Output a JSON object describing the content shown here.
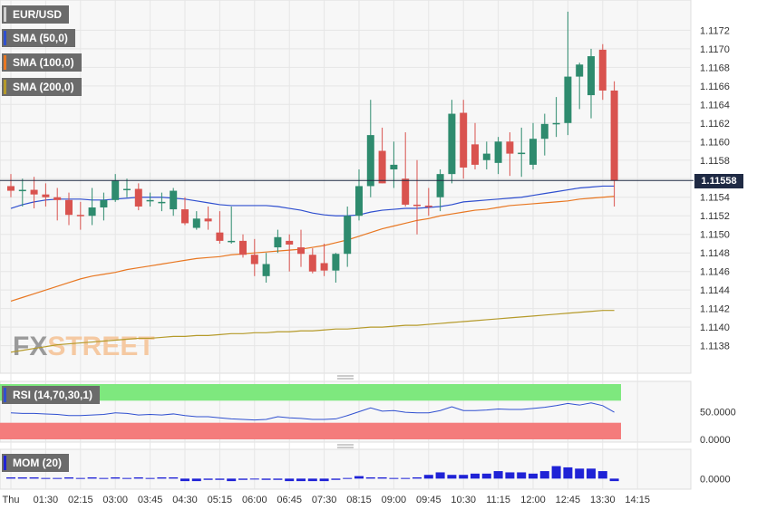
{
  "legend": {
    "pair": "EUR/USD",
    "sma50": "SMA (50,0)",
    "sma100": "SMA (100,0)",
    "sma200": "SMA (200,0)",
    "rsi": "RSI (14,70,30,1)",
    "mom": "MOM (20)"
  },
  "watermark": "FXSTREET",
  "current_price_label": "1.11558",
  "colors": {
    "up": "#2e8b6e",
    "down": "#d9534f",
    "sma50": "#2f4fcf",
    "sma100": "#e87722",
    "sma200": "#b59a2a",
    "rsi_line": "#3050d0",
    "rsi_overbought": "#7ee87e",
    "rsi_oversold": "#f47c7c",
    "mom_bar": "#1f22d6",
    "price_line": "#1f2a44",
    "watermark_fx": "#9a9a9a",
    "watermark_street": "#f5c9a2"
  },
  "chart_data": {
    "type": "candlestick",
    "title": "EUR/USD",
    "y_ticks": [
      "1.1172",
      "1.1170",
      "1.1168",
      "1.1166",
      "1.1164",
      "1.1162",
      "1.1160",
      "1.1158",
      "1.1156",
      "1.1154",
      "1.1152",
      "1.1150",
      "1.1148",
      "1.1146",
      "1.1144",
      "1.1142",
      "1.1140",
      "1.1138"
    ],
    "ylim": [
      1.11365,
      1.11735
    ],
    "x_ticks": [
      "Thu",
      "01:30",
      "02:15",
      "03:00",
      "03:45",
      "04:30",
      "05:15",
      "06:00",
      "06:45",
      "07:30",
      "08:15",
      "09:00",
      "09:45",
      "10:30",
      "11:15",
      "12:00",
      "12:45",
      "13:30",
      "14:15"
    ],
    "interval_minutes": 15,
    "candles": [
      {
        "o": 1.11552,
        "h": 1.11565,
        "l": 1.1154,
        "c": 1.11547
      },
      {
        "o": 1.11547,
        "h": 1.1156,
        "l": 1.1153,
        "c": 1.11548
      },
      {
        "o": 1.11548,
        "h": 1.11562,
        "l": 1.11528,
        "c": 1.11543
      },
      {
        "o": 1.11543,
        "h": 1.11555,
        "l": 1.1153,
        "c": 1.1154
      },
      {
        "o": 1.1154,
        "h": 1.1155,
        "l": 1.11515,
        "c": 1.11537
      },
      {
        "o": 1.11537,
        "h": 1.11545,
        "l": 1.1151,
        "c": 1.11521
      },
      {
        "o": 1.11521,
        "h": 1.11535,
        "l": 1.11505,
        "c": 1.1152
      },
      {
        "o": 1.1152,
        "h": 1.1155,
        "l": 1.1151,
        "c": 1.11529
      },
      {
        "o": 1.11529,
        "h": 1.11545,
        "l": 1.11515,
        "c": 1.11537
      },
      {
        "o": 1.11537,
        "h": 1.11565,
        "l": 1.11535,
        "c": 1.11558
      },
      {
        "o": 1.11548,
        "h": 1.1156,
        "l": 1.1154,
        "c": 1.11549
      },
      {
        "o": 1.11549,
        "h": 1.11555,
        "l": 1.11526,
        "c": 1.1153
      },
      {
        "o": 1.11537,
        "h": 1.11545,
        "l": 1.1153,
        "c": 1.11537
      },
      {
        "o": 1.11535,
        "h": 1.11545,
        "l": 1.11525,
        "c": 1.11535
      },
      {
        "o": 1.11527,
        "h": 1.1155,
        "l": 1.1152,
        "c": 1.11547
      },
      {
        "o": 1.11527,
        "h": 1.1154,
        "l": 1.1151,
        "c": 1.11512
      },
      {
        "o": 1.11507,
        "h": 1.11525,
        "l": 1.11505,
        "c": 1.11517
      },
      {
        "o": 1.11517,
        "h": 1.1153,
        "l": 1.11505,
        "c": 1.11514
      },
      {
        "o": 1.11502,
        "h": 1.11525,
        "l": 1.1149,
        "c": 1.11493
      },
      {
        "o": 1.11493,
        "h": 1.1153,
        "l": 1.1149,
        "c": 1.11493
      },
      {
        "o": 1.11493,
        "h": 1.115,
        "l": 1.11475,
        "c": 1.11478
      },
      {
        "o": 1.11478,
        "h": 1.11495,
        "l": 1.11455,
        "c": 1.11468
      },
      {
        "o": 1.11455,
        "h": 1.1148,
        "l": 1.11448,
        "c": 1.11468
      },
      {
        "o": 1.11486,
        "h": 1.11505,
        "l": 1.1148,
        "c": 1.11497
      },
      {
        "o": 1.11493,
        "h": 1.115,
        "l": 1.1146,
        "c": 1.11489
      },
      {
        "o": 1.11486,
        "h": 1.11505,
        "l": 1.11465,
        "c": 1.11479
      },
      {
        "o": 1.11478,
        "h": 1.11485,
        "l": 1.11458,
        "c": 1.1146
      },
      {
        "o": 1.11469,
        "h": 1.1149,
        "l": 1.11455,
        "c": 1.11461
      },
      {
        "o": 1.11461,
        "h": 1.1148,
        "l": 1.11448,
        "c": 1.11479
      },
      {
        "o": 1.11479,
        "h": 1.1153,
        "l": 1.11465,
        "c": 1.1152
      },
      {
        "o": 1.1152,
        "h": 1.1157,
        "l": 1.11515,
        "c": 1.11552
      },
      {
        "o": 1.11552,
        "h": 1.11645,
        "l": 1.1154,
        "c": 1.11607
      },
      {
        "o": 1.1159,
        "h": 1.11615,
        "l": 1.11555,
        "c": 1.11555
      },
      {
        "o": 1.1157,
        "h": 1.116,
        "l": 1.1155,
        "c": 1.11575
      },
      {
        "o": 1.1156,
        "h": 1.1161,
        "l": 1.1153,
        "c": 1.11532
      },
      {
        "o": 1.11532,
        "h": 1.1158,
        "l": 1.115,
        "c": 1.11531
      },
      {
        "o": 1.11531,
        "h": 1.1155,
        "l": 1.1152,
        "c": 1.1153
      },
      {
        "o": 1.1154,
        "h": 1.1157,
        "l": 1.11525,
        "c": 1.11565
      },
      {
        "o": 1.11565,
        "h": 1.11645,
        "l": 1.11555,
        "c": 1.1163
      },
      {
        "o": 1.11631,
        "h": 1.11645,
        "l": 1.1156,
        "c": 1.11572
      },
      {
        "o": 1.11597,
        "h": 1.1162,
        "l": 1.1157,
        "c": 1.11575
      },
      {
        "o": 1.1158,
        "h": 1.116,
        "l": 1.1157,
        "c": 1.11587
      },
      {
        "o": 1.11577,
        "h": 1.11605,
        "l": 1.11565,
        "c": 1.116
      },
      {
        "o": 1.116,
        "h": 1.1161,
        "l": 1.11563,
        "c": 1.11587
      },
      {
        "o": 1.11588,
        "h": 1.11615,
        "l": 1.11562,
        "c": 1.11588
      },
      {
        "o": 1.11575,
        "h": 1.1162,
        "l": 1.1157,
        "c": 1.11603
      },
      {
        "o": 1.11603,
        "h": 1.1163,
        "l": 1.11585,
        "c": 1.11619
      },
      {
        "o": 1.11619,
        "h": 1.11648,
        "l": 1.11605,
        "c": 1.1162
      },
      {
        "o": 1.1162,
        "h": 1.1174,
        "l": 1.11607,
        "c": 1.1167
      },
      {
        "o": 1.1167,
        "h": 1.11685,
        "l": 1.11635,
        "c": 1.11683
      },
      {
        "o": 1.1165,
        "h": 1.117,
        "l": 1.11625,
        "c": 1.11692
      },
      {
        "o": 1.11699,
        "h": 1.11705,
        "l": 1.11645,
        "c": 1.11655
      },
      {
        "o": 1.11655,
        "h": 1.11665,
        "l": 1.1153,
        "c": 1.11558
      }
    ],
    "sma50_values": [
      1.11528,
      1.11532,
      1.11535,
      1.11537,
      1.11538,
      1.11538,
      1.11538,
      1.11537,
      1.11537,
      1.11538,
      1.11539,
      1.1154,
      1.1154,
      1.1154,
      1.11539,
      1.11538,
      1.11536,
      1.11534,
      1.11532,
      1.11531,
      1.11531,
      1.11531,
      1.11531,
      1.1153,
      1.11528,
      1.11526,
      1.11523,
      1.11521,
      1.1152,
      1.1152,
      1.11521,
      1.11524,
      1.11526,
      1.11527,
      1.11528,
      1.11528,
      1.11529,
      1.1153,
      1.11532,
      1.11535,
      1.11536,
      1.11537,
      1.11538,
      1.11539,
      1.1154,
      1.11542,
      1.11544,
      1.11546,
      1.11548,
      1.1155,
      1.11551,
      1.11552,
      1.11552
    ],
    "sma100_values": [
      1.11428,
      1.11432,
      1.11436,
      1.1144,
      1.11444,
      1.11448,
      1.11452,
      1.11455,
      1.11457,
      1.11459,
      1.11462,
      1.11464,
      1.11466,
      1.11468,
      1.1147,
      1.11472,
      1.11474,
      1.11475,
      1.11476,
      1.11478,
      1.11479,
      1.1148,
      1.11481,
      1.11482,
      1.11483,
      1.11484,
      1.11486,
      1.11488,
      1.11491,
      1.11494,
      1.11498,
      1.11502,
      1.11506,
      1.11509,
      1.11512,
      1.11515,
      1.11517,
      1.1152,
      1.11522,
      1.11524,
      1.11526,
      1.11527,
      1.11529,
      1.11531,
      1.11532,
      1.11533,
      1.11534,
      1.11535,
      1.11536,
      1.11538,
      1.11539,
      1.1154,
      1.11541
    ],
    "sma200_values": [
      1.11373,
      1.11375,
      1.11377,
      1.11379,
      1.11381,
      1.11382,
      1.11383,
      1.11384,
      1.11385,
      1.11386,
      1.11387,
      1.11388,
      1.11388,
      1.11389,
      1.1139,
      1.1139,
      1.11391,
      1.11391,
      1.11392,
      1.11393,
      1.11393,
      1.11394,
      1.11394,
      1.11395,
      1.11395,
      1.11396,
      1.11396,
      1.11397,
      1.11398,
      1.11398,
      1.11399,
      1.114,
      1.114,
      1.11401,
      1.11402,
      1.11402,
      1.11403,
      1.11404,
      1.11405,
      1.11406,
      1.11407,
      1.11408,
      1.11409,
      1.1141,
      1.11411,
      1.11412,
      1.11413,
      1.11414,
      1.11415,
      1.11416,
      1.11417,
      1.11418,
      1.11418
    ],
    "rsi": {
      "y_ticks": [
        "50.0000",
        "0.0000"
      ],
      "ylim": [
        0,
        100
      ],
      "overbought": 70,
      "oversold": 30,
      "values": [
        48,
        47,
        47,
        46,
        45,
        43,
        43,
        44,
        45,
        48,
        47,
        44,
        45,
        44,
        46,
        43,
        41,
        41,
        39,
        37,
        36,
        35,
        36,
        41,
        39,
        38,
        36,
        36,
        37,
        43,
        50,
        57,
        51,
        52,
        49,
        48,
        48,
        52,
        59,
        52,
        52,
        53,
        55,
        54,
        54,
        56,
        58,
        61,
        65,
        62,
        66,
        61,
        49
      ]
    },
    "mom": {
      "y_ticks": [
        "0.0000"
      ],
      "ylim": [
        -0.0007,
        0.0022
      ],
      "values": [
        0.0001,
        0.0001,
        0.0001,
        5e-05,
        5e-05,
        0.0001,
        5e-05,
        0.0001,
        5e-05,
        0.0001,
        5e-05,
        0.0001,
        5e-05,
        0.0001,
        0.0001,
        -0.0002,
        -0.0002,
        -0.0001,
        -0.0001,
        -0.0002,
        -0.0001,
        -5e-05,
        -0.0001,
        -0.0001,
        -0.0002,
        -0.0002,
        -0.0002,
        -0.0002,
        -0.0001,
        5e-05,
        0.0002,
        0.0001,
        0.0001,
        5e-05,
        5e-05,
        0.0001,
        0.0003,
        0.0005,
        0.0003,
        0.0003,
        0.0004,
        0.0004,
        0.0006,
        0.0005,
        0.0005,
        0.0004,
        0.0006,
        0.001,
        0.0009,
        0.0008,
        0.0008,
        0.0006,
        -0.0002
      ]
    }
  }
}
